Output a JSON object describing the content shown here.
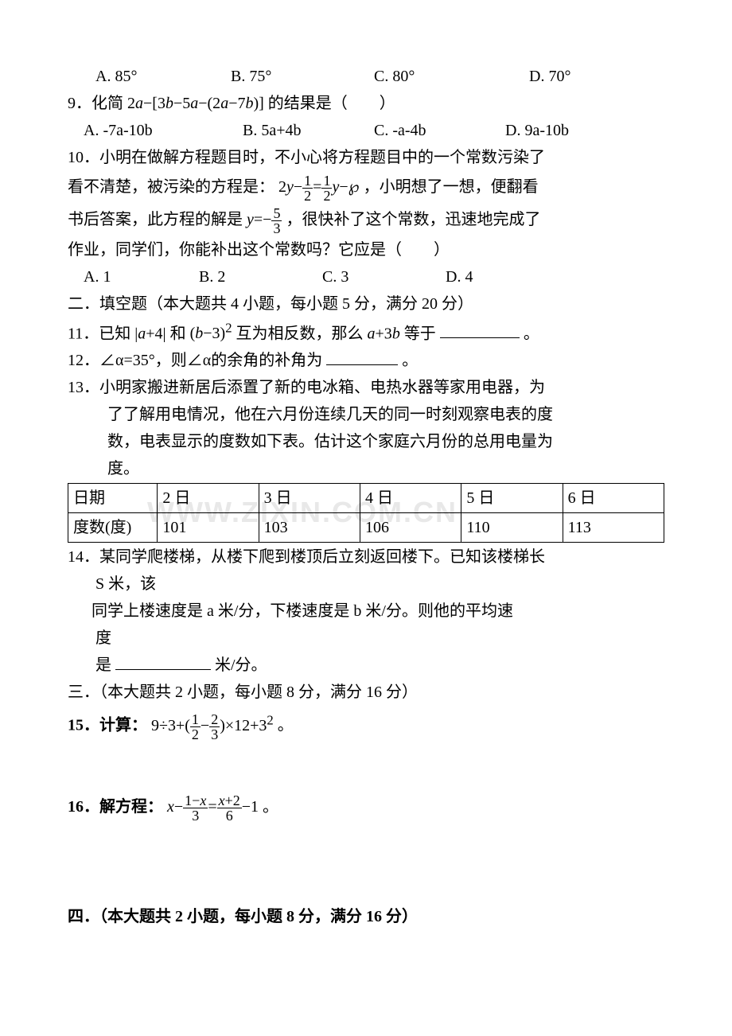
{
  "watermark": "WWW.ZIXIN.COM.CN",
  "q8_options": {
    "a": "A. 85°",
    "b": "B. 75°",
    "c": "C. 80°",
    "d": "D. 70°"
  },
  "q9": {
    "prefix": "9．化简",
    "suffix": "的结果是（　　）",
    "options": {
      "a": "A. -7a-10b",
      "b": "B. 5a+4b",
      "c": "C. -a-4b",
      "d": "D. 9a-10b"
    }
  },
  "q10": {
    "line1": "10．小明在做解方程题目时，不小心将方程题目中的一个常数污染了",
    "line2a": "看不清楚，被污染的方程是：",
    "line2b": "，小明想了一想，便翻看",
    "line3a": "书后答案，此方程的解是",
    "line3b": "，很快补了这个常数，迅速地完成了",
    "line4": "作业，同学们，你能补出这个常数吗？它应是（　　）",
    "options": {
      "a": "A. 1",
      "b": "B. 2",
      "c": "C. 3",
      "d": "D. 4"
    }
  },
  "section2": "二．填空题（本大题共 4 小题，每小题 5 分，满分 20 分）",
  "q11": {
    "prefix": "11．已知",
    "mid": " 和",
    "mid2": "互为相反数，那么",
    "suffix": "等于",
    "end": "。"
  },
  "q12": {
    "text": "12．∠α=35°，则∠α的余角的补角为",
    "end": "。"
  },
  "q13": {
    "line1": "13．小明家搬进新居后添置了新的电冰箱、电热水器等家用电器，为",
    "line2": "了了解用电情况，他在六月份连续几天的同一时刻观察电表的度",
    "line3": "数，电表显示的度数如下表。估计这个家庭六月份的总用电量为",
    "line4": "度。"
  },
  "table": {
    "headers": [
      "日期",
      "2 日",
      "3 日",
      "4 日",
      "5 日",
      "6 日"
    ],
    "row_label": "度数(度)",
    "values": [
      "101",
      "103",
      "106",
      "110",
      "113"
    ],
    "col_widths": [
      "15%",
      "17%",
      "17%",
      "17%",
      "17%",
      "17%"
    ]
  },
  "q14": {
    "line1": "14．某同学爬楼梯，从楼下爬到楼顶后立刻返回楼下。已知该楼梯长",
    "line2": "S 米，该",
    "line3": "同学上楼速度是 a 米/分，下楼速度是 b  米/分。则他的平均速",
    "line4": "度",
    "line5a": "是",
    "line5b": "米/分。"
  },
  "section3": "三．（本大题共 2 小题，每小题 8 分，满分 16 分）",
  "q15": {
    "prefix": "15．计算：",
    "end": "。"
  },
  "q16": {
    "prefix": "16．解方程：",
    "end": "。"
  },
  "section4": "四．（本大题共 2 小题，每小题 8 分，满分 16 分）"
}
